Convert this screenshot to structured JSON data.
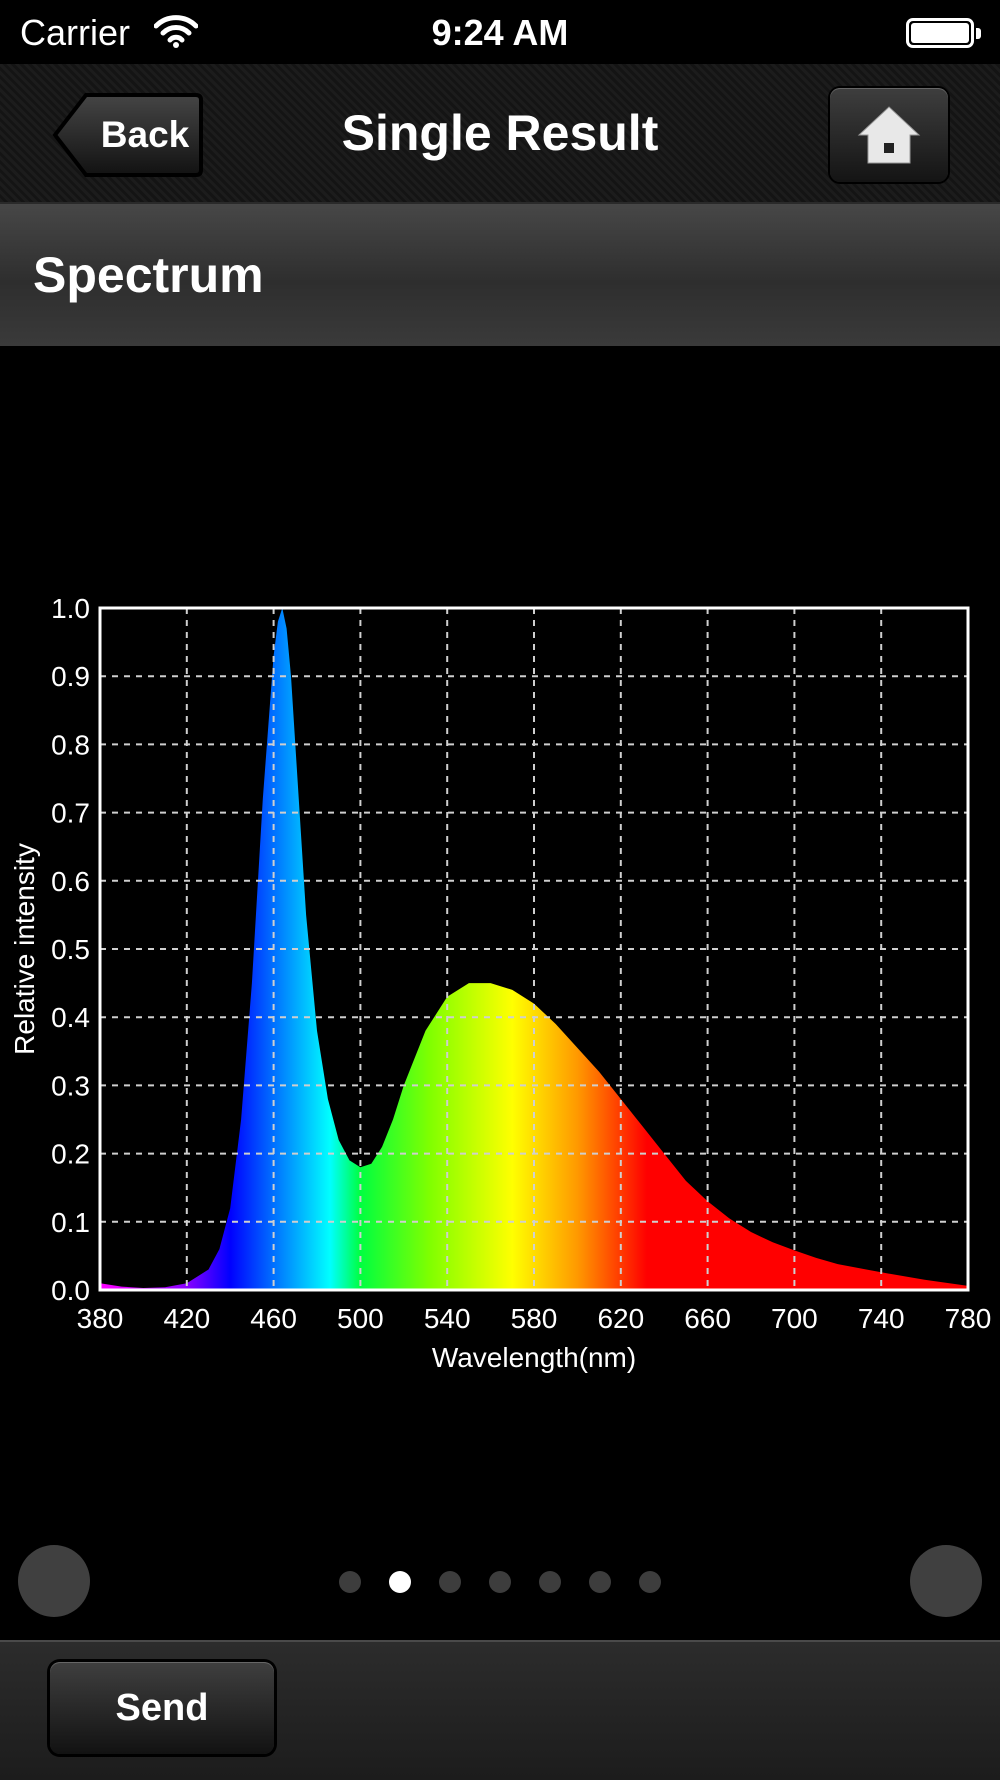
{
  "status_bar": {
    "carrier": "Carrier",
    "time": "9:24 AM"
  },
  "nav": {
    "back_label": "Back",
    "title": "Single Result"
  },
  "section": {
    "title": "Spectrum"
  },
  "chart_data": {
    "type": "area",
    "title": "",
    "xlabel": "Wavelength(nm)",
    "ylabel": "Relative intensity",
    "xlim": [
      380,
      780
    ],
    "ylim": [
      0,
      1.0
    ],
    "grid": true,
    "x_ticks": [
      "380",
      "420",
      "460",
      "500",
      "540",
      "580",
      "620",
      "660",
      "700",
      "740",
      "780"
    ],
    "y_ticks": [
      "0.0",
      "0.1",
      "0.2",
      "0.3",
      "0.4",
      "0.5",
      "0.6",
      "0.7",
      "0.8",
      "0.9",
      "1.0"
    ],
    "x": [
      380,
      390,
      400,
      410,
      420,
      430,
      435,
      440,
      445,
      450,
      455,
      460,
      462,
      464,
      466,
      468,
      470,
      475,
      480,
      485,
      490,
      495,
      500,
      505,
      510,
      515,
      520,
      530,
      540,
      550,
      560,
      570,
      580,
      590,
      600,
      610,
      620,
      630,
      640,
      650,
      660,
      670,
      680,
      690,
      700,
      710,
      720,
      740,
      760,
      780
    ],
    "y": [
      0.01,
      0.005,
      0.003,
      0.004,
      0.01,
      0.03,
      0.06,
      0.12,
      0.25,
      0.45,
      0.72,
      0.93,
      0.98,
      1.0,
      0.97,
      0.9,
      0.8,
      0.55,
      0.38,
      0.28,
      0.22,
      0.19,
      0.18,
      0.185,
      0.21,
      0.25,
      0.3,
      0.38,
      0.43,
      0.45,
      0.45,
      0.44,
      0.42,
      0.39,
      0.355,
      0.32,
      0.28,
      0.24,
      0.2,
      0.16,
      0.13,
      0.105,
      0.085,
      0.07,
      0.058,
      0.047,
      0.038,
      0.026,
      0.015,
      0.006
    ]
  },
  "pager": {
    "page_count": 7,
    "current_page": 2
  },
  "toolbar": {
    "send_label": "Send"
  }
}
